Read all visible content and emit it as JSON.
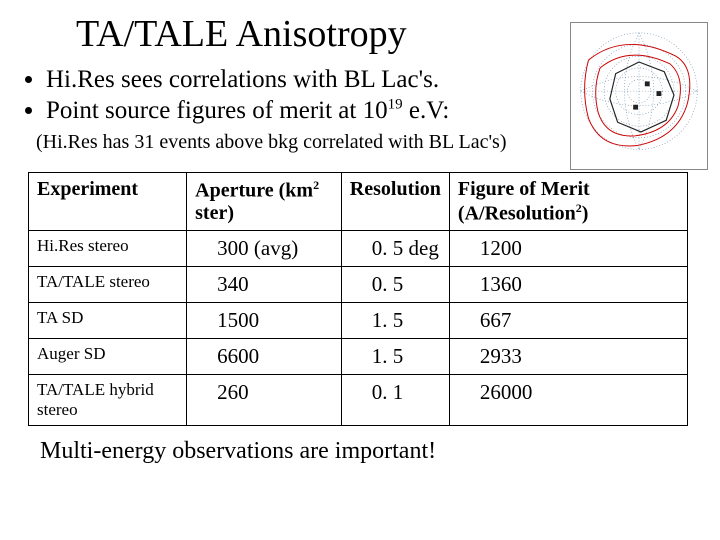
{
  "title": "TA/TALE Anisotropy",
  "bullets": [
    "Hi.Res sees correlations with BL Lac's.",
    "Point source figures of merit at 10__SUP19__ e.V:"
  ],
  "paren_note": "(Hi.Res has 31 events above bkg correlated with BL Lac's)",
  "table": {
    "columns": [
      {
        "label": "Experiment"
      },
      {
        "label": "Aperture (km__SUP2__ ster)"
      },
      {
        "label": "Resolution"
      },
      {
        "label": "Figure of Merit (A/Resolution__SUP2__)"
      }
    ],
    "rows": [
      {
        "experiment": "Hi.Res stereo",
        "aperture": "300 (avg)",
        "resolution": "0. 5 deg",
        "fom": "1200"
      },
      {
        "experiment": "TA/TALE stereo",
        "aperture": "340",
        "resolution": "0. 5",
        "fom": "1360"
      },
      {
        "experiment": "TA SD",
        "aperture": "1500",
        "resolution": "1. 5",
        "fom": "667"
      },
      {
        "experiment": "Auger SD",
        "aperture": "6600",
        "resolution": "1. 5",
        "fom": "2933"
      },
      {
        "experiment": "TA/TALE hybrid stereo",
        "aperture": "260",
        "resolution": "0. 1",
        "fom": "26000"
      }
    ]
  },
  "footer": "Multi-energy observations are important!",
  "chart": {
    "type": "skymap",
    "background": "#ffffff",
    "axis_color": "#888888",
    "grid_dot_color": "#6688aa",
    "red_curve_color": "#cc0000",
    "black_curve_color": "#222222",
    "marker_color": "#222222",
    "fontsize": 7
  }
}
